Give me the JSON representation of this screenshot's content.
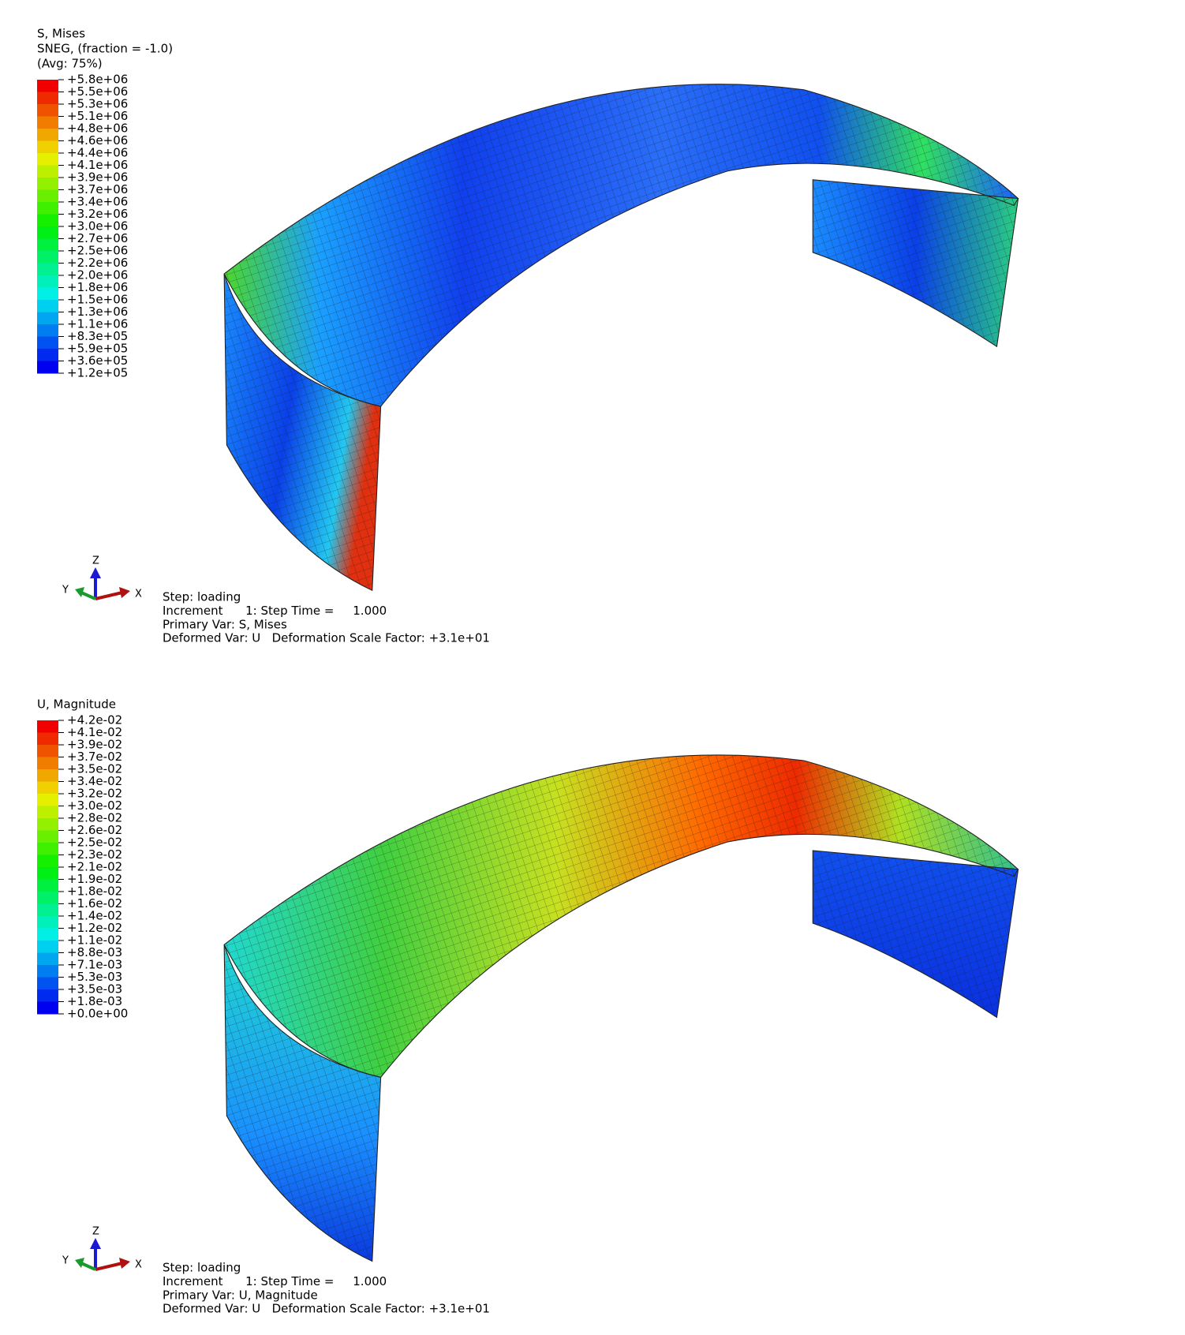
{
  "panels": [
    {
      "legend": {
        "title": [
          "S, Mises",
          "SNEG, (fraction = -1.0)",
          "(Avg: 75%)"
        ],
        "labels": [
          "+5.8e+06",
          "+5.5e+06",
          "+5.3e+06",
          "+5.1e+06",
          "+4.8e+06",
          "+4.6e+06",
          "+4.4e+06",
          "+4.1e+06",
          "+3.9e+06",
          "+3.7e+06",
          "+3.4e+06",
          "+3.2e+06",
          "+3.0e+06",
          "+2.7e+06",
          "+2.5e+06",
          "+2.2e+06",
          "+2.0e+06",
          "+1.8e+06",
          "+1.5e+06",
          "+1.3e+06",
          "+1.1e+06",
          "+8.3e+05",
          "+5.9e+05",
          "+3.6e+05",
          "+1.2e+05"
        ]
      },
      "triad": {
        "z": "Z",
        "y": "Y",
        "x": "X"
      },
      "info": [
        "Step: loading",
        "Increment      1: Step Time =     1.000",
        "Primary Var: S, Mises",
        "Deformed Var: U   Deformation Scale Factor: +3.1e+01"
      ]
    },
    {
      "legend": {
        "title": [
          "U, Magnitude"
        ],
        "labels": [
          "+4.2e-02",
          "+4.1e-02",
          "+3.9e-02",
          "+3.7e-02",
          "+3.5e-02",
          "+3.4e-02",
          "+3.2e-02",
          "+3.0e-02",
          "+2.8e-02",
          "+2.6e-02",
          "+2.5e-02",
          "+2.3e-02",
          "+2.1e-02",
          "+1.9e-02",
          "+1.8e-02",
          "+1.6e-02",
          "+1.4e-02",
          "+1.2e-02",
          "+1.1e-02",
          "+8.8e-03",
          "+7.1e-03",
          "+5.3e-03",
          "+3.5e-03",
          "+1.8e-03",
          "+0.0e+00"
        ]
      },
      "triad": {
        "z": "Z",
        "y": "Y",
        "x": "X"
      },
      "info": [
        "Step: loading",
        "Increment      1: Step Time =     1.000",
        "Primary Var: U, Magnitude",
        "Deformed Var: U   Deformation Scale Factor: +3.1e+01"
      ]
    }
  ]
}
